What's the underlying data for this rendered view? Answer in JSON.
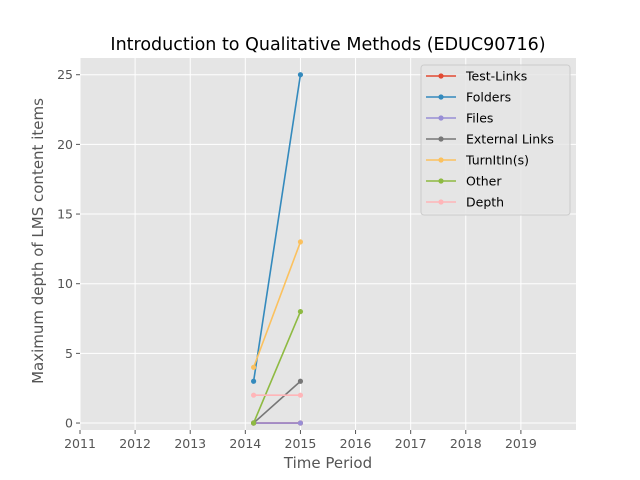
{
  "chart_data": {
    "type": "line",
    "title": "Introduction to Qualitative Methods (EDUC90716)",
    "xlabel": "Time Period",
    "ylabel": "Maximum depth of LMS content items",
    "xlim": [
      2011,
      2020
    ],
    "ylim": [
      -0.5,
      26.2
    ],
    "x_ticks": [
      "2011",
      "2012",
      "2013",
      "2014",
      "2015",
      "2016",
      "2017",
      "2018",
      "2019"
    ],
    "y_ticks": [
      "0",
      "5",
      "10",
      "15",
      "20",
      "25"
    ],
    "grid": true,
    "legend_position": "top-right",
    "x": [
      2014.15,
      2015.0
    ],
    "series": [
      {
        "name": "Test-Links",
        "color": "#e24a33",
        "values": [
          0,
          0
        ]
      },
      {
        "name": "Folders",
        "color": "#348abd",
        "values": [
          3,
          25
        ]
      },
      {
        "name": "Files",
        "color": "#988ed5",
        "values": [
          0,
          0
        ]
      },
      {
        "name": "External Links",
        "color": "#777777",
        "values": [
          0,
          3
        ]
      },
      {
        "name": "TurnItIn(s)",
        "color": "#fbc15e",
        "values": [
          4,
          13
        ]
      },
      {
        "name": "Other",
        "color": "#8eba42",
        "values": [
          0,
          8
        ]
      },
      {
        "name": "Depth",
        "color": "#ffb5b8",
        "values": [
          2,
          2
        ]
      }
    ]
  }
}
